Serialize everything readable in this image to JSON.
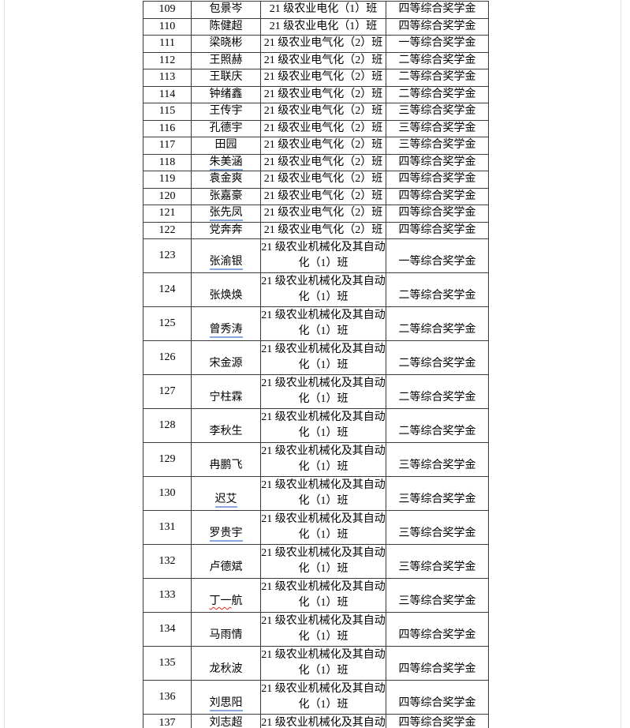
{
  "page": {
    "background": "#ffffff",
    "page_edge_color": "#e2e2e2",
    "table_border_color": "#3a3a3a",
    "name_underline_color": "#8aa7dc",
    "spellcheck_squiggle_color": "#e02a2a"
  },
  "table": {
    "rows": [
      {
        "no": "109",
        "name": "包景岑",
        "underline": false,
        "squiggle": false,
        "cls_lines": [
          "21 级农业电化（1）班"
        ],
        "award": "四等综合奖学金",
        "tall": false
      },
      {
        "no": "110",
        "name": "陈健超",
        "underline": false,
        "squiggle": false,
        "cls_lines": [
          "21 级农业电化（1）班"
        ],
        "award": "四等综合奖学金",
        "tall": false
      },
      {
        "no": "111",
        "name": "梁晓彬",
        "underline": false,
        "squiggle": false,
        "cls_lines": [
          "21 级农业电气化（2）班"
        ],
        "award": "一等综合奖学金",
        "tall": false
      },
      {
        "no": "112",
        "name": "王照赫",
        "underline": false,
        "squiggle": false,
        "cls_lines": [
          "21 级农业电气化（2）班"
        ],
        "award": "二等综合奖学金",
        "tall": false
      },
      {
        "no": "113",
        "name": "王联庆",
        "underline": false,
        "squiggle": false,
        "cls_lines": [
          "21 级农业电气化（2）班"
        ],
        "award": "二等综合奖学金",
        "tall": false
      },
      {
        "no": "114",
        "name": "钟绪鑫",
        "underline": false,
        "squiggle": false,
        "cls_lines": [
          "21 级农业电气化（2）班"
        ],
        "award": "二等综合奖学金",
        "tall": false
      },
      {
        "no": "115",
        "name": "王传宇",
        "underline": false,
        "squiggle": false,
        "cls_lines": [
          "21 级农业电气化（2）班"
        ],
        "award": "三等综合奖学金",
        "tall": false
      },
      {
        "no": "116",
        "name": "孔德宇",
        "underline": false,
        "squiggle": false,
        "cls_lines": [
          "21 级农业电气化（2）班"
        ],
        "award": "三等综合奖学金",
        "tall": false
      },
      {
        "no": "117",
        "name": "田园",
        "underline": false,
        "squiggle": false,
        "cls_lines": [
          "21 级农业电气化（2）班"
        ],
        "award": "三等综合奖学金",
        "tall": false
      },
      {
        "no": "118",
        "name": "朱美涵",
        "underline": true,
        "squiggle": false,
        "cls_lines": [
          "21 级农业电气化（2）班"
        ],
        "award": "四等综合奖学金",
        "tall": false
      },
      {
        "no": "119",
        "name": "袁金爽",
        "underline": false,
        "squiggle": false,
        "cls_lines": [
          "21 级农业电气化（2）班"
        ],
        "award": "四等综合奖学金",
        "tall": false
      },
      {
        "no": "120",
        "name": "张嘉豪",
        "underline": false,
        "squiggle": false,
        "cls_lines": [
          "21 级农业电气化（2）班"
        ],
        "award": "四等综合奖学金",
        "tall": false
      },
      {
        "no": "121",
        "name": "张先凤",
        "underline": true,
        "squiggle": false,
        "cls_lines": [
          "21 级农业电气化（2）班"
        ],
        "award": "四等综合奖学金",
        "tall": false
      },
      {
        "no": "122",
        "name": "党奔奔",
        "underline": false,
        "squiggle": false,
        "cls_lines": [
          "21 级农业电气化（2）班"
        ],
        "award": "四等综合奖学金",
        "tall": false
      },
      {
        "no": "123",
        "name": "张渝银",
        "underline": true,
        "squiggle": false,
        "cls_lines": [
          "21 级农业机械化及其自动",
          "化（1）班"
        ],
        "award": "一等综合奖学金",
        "tall": true
      },
      {
        "no": "124",
        "name": "张焕焕",
        "underline": false,
        "squiggle": false,
        "cls_lines": [
          "21 级农业机械化及其自动",
          "化（1）班"
        ],
        "award": "二等综合奖学金",
        "tall": true
      },
      {
        "no": "125",
        "name": "曾秀涛",
        "underline": true,
        "squiggle": false,
        "cls_lines": [
          "21 级农业机械化及其自动",
          "化（1）班"
        ],
        "award": "二等综合奖学金",
        "tall": true
      },
      {
        "no": "126",
        "name": "宋金源",
        "underline": false,
        "squiggle": false,
        "cls_lines": [
          "21 级农业机械化及其自动",
          "化（1）班"
        ],
        "award": "二等综合奖学金",
        "tall": true
      },
      {
        "no": "127",
        "name": "宁柱霖",
        "underline": false,
        "squiggle": false,
        "cls_lines": [
          "21 级农业机械化及其自动",
          "化（1）班"
        ],
        "award": "二等综合奖学金",
        "tall": true
      },
      {
        "no": "128",
        "name": "李秋生",
        "underline": false,
        "squiggle": false,
        "cls_lines": [
          "21 级农业机械化及其自动",
          "化（1）班"
        ],
        "award": "二等综合奖学金",
        "tall": true
      },
      {
        "no": "129",
        "name": "冉鹏飞",
        "underline": false,
        "squiggle": false,
        "cls_lines": [
          "21 级农业机械化及其自动",
          "化（1）班"
        ],
        "award": "三等综合奖学金",
        "tall": true
      },
      {
        "no": "130",
        "name": "迟艾",
        "underline": true,
        "squiggle": false,
        "cls_lines": [
          "21 级农业机械化及其自动",
          "化（1）班"
        ],
        "award": "三等综合奖学金",
        "tall": true
      },
      {
        "no": "131",
        "name": "罗贵宇",
        "underline": true,
        "squiggle": false,
        "cls_lines": [
          "21 级农业机械化及其自动",
          "化（1）班"
        ],
        "award": "三等综合奖学金",
        "tall": true
      },
      {
        "no": "132",
        "name": "卢德斌",
        "underline": false,
        "squiggle": false,
        "cls_lines": [
          "21 级农业机械化及其自动",
          "化（1）班"
        ],
        "award": "三等综合奖学金",
        "tall": true
      },
      {
        "no": "133",
        "name": "丁一航",
        "underline": false,
        "squiggle": true,
        "cls_lines": [
          "21 级农业机械化及其自动",
          "化（1）班"
        ],
        "award": "三等综合奖学金",
        "tall": true
      },
      {
        "no": "134",
        "name": "马雨情",
        "underline": false,
        "squiggle": false,
        "cls_lines": [
          "21 级农业机械化及其自动",
          "化（1）班"
        ],
        "award": "四等综合奖学金",
        "tall": true
      },
      {
        "no": "135",
        "name": "龙秋波",
        "underline": false,
        "squiggle": false,
        "cls_lines": [
          "21 级农业机械化及其自动",
          "化（1）班"
        ],
        "award": "四等综合奖学金",
        "tall": true
      },
      {
        "no": "136",
        "name": "刘思阳",
        "underline": true,
        "squiggle": false,
        "cls_lines": [
          "21 级农业机械化及其自动",
          "化（1）班"
        ],
        "award": "四等综合奖学金",
        "tall": true
      },
      {
        "no": "137",
        "name": "刘志超",
        "underline": false,
        "squiggle": false,
        "cls_lines": [
          "21 级农业机械化及其自动"
        ],
        "award": "四等综合奖学金",
        "tall": false,
        "clipped": true
      }
    ]
  }
}
